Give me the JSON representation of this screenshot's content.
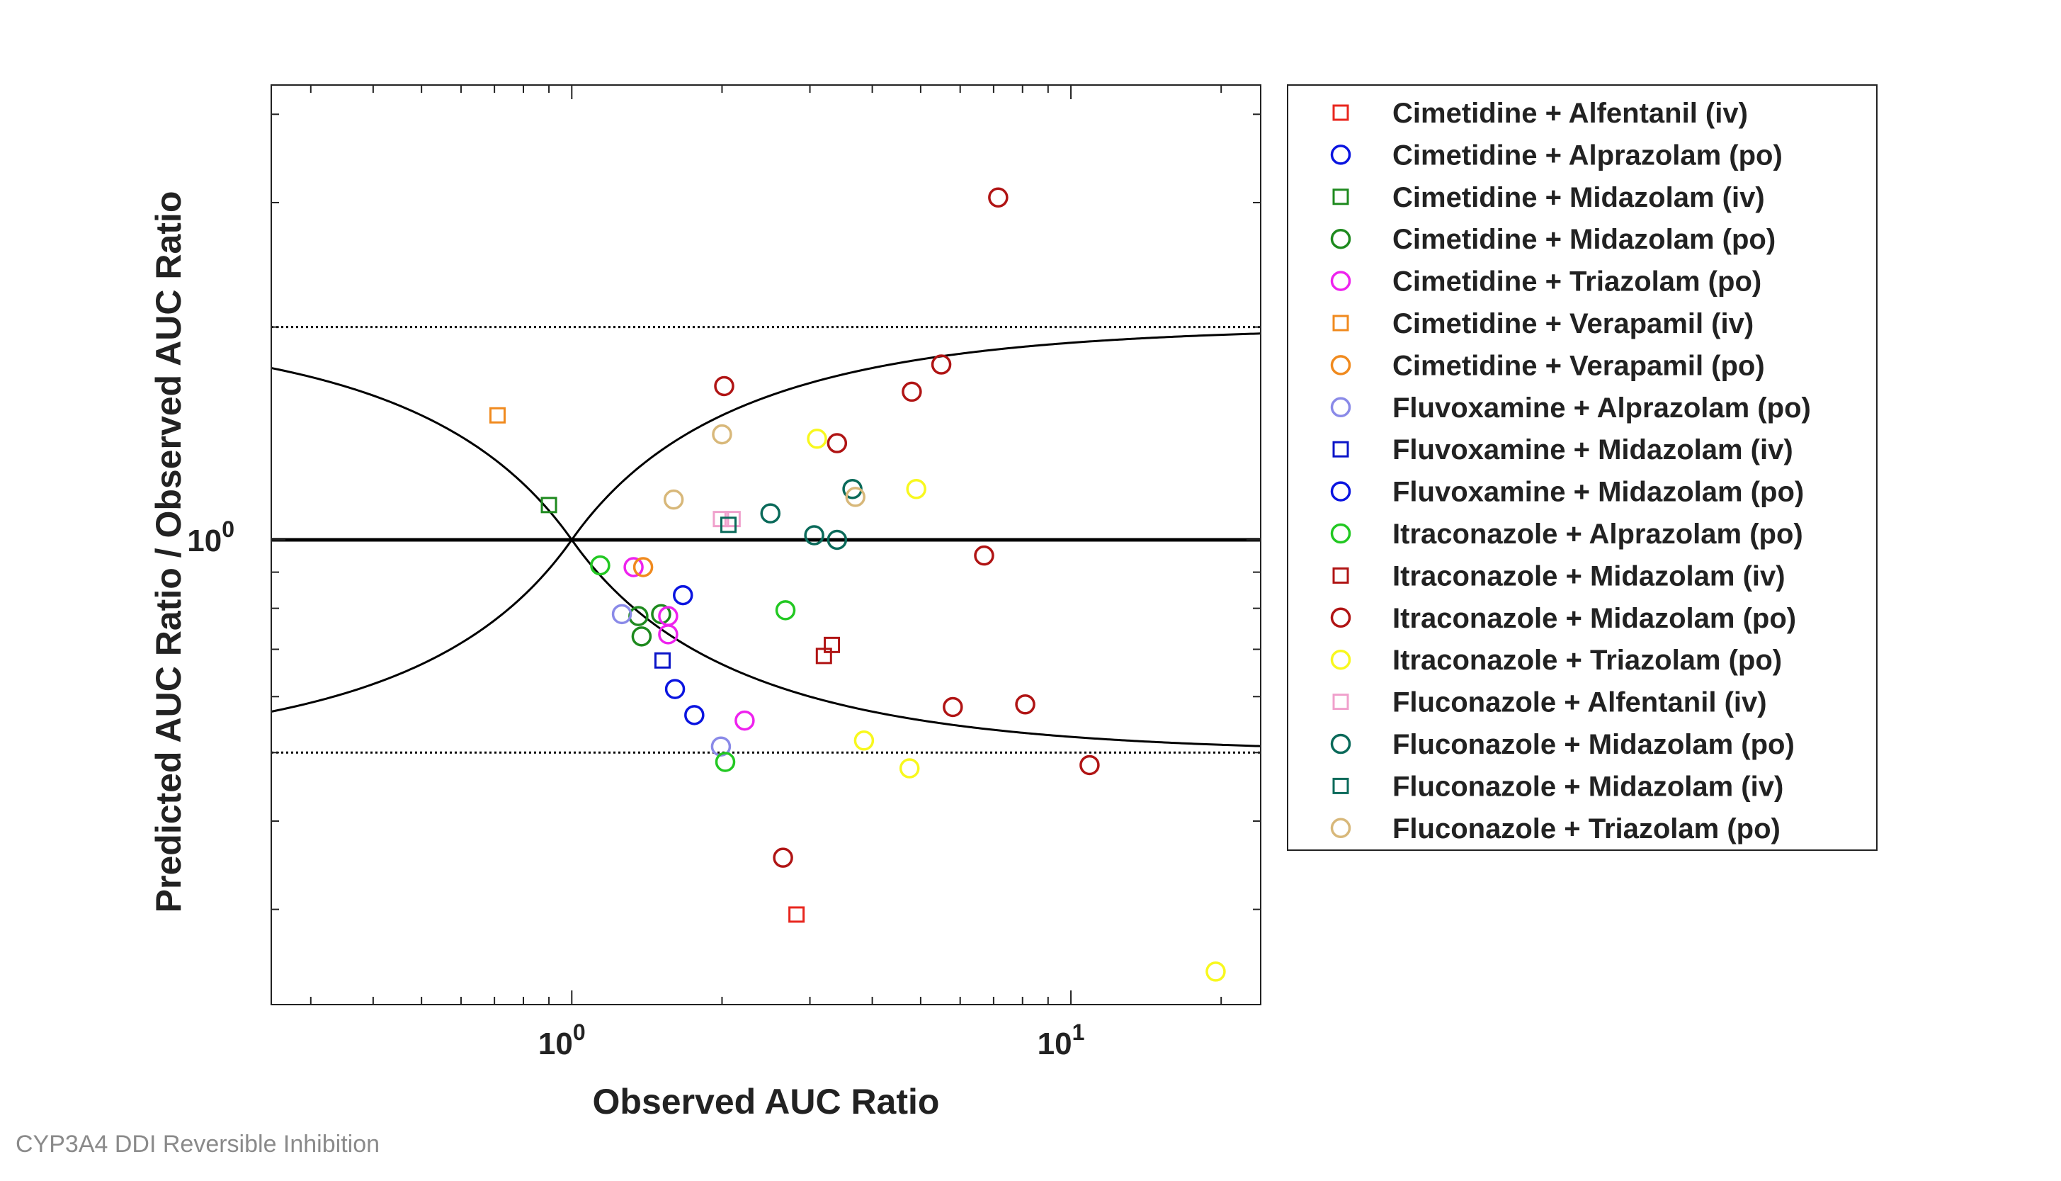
{
  "footer_caption": "CYP3A4 DDI Reversible Inhibition",
  "chart_data": {
    "type": "scatter",
    "title": "",
    "xlabel": "Observed AUC Ratio",
    "ylabel": "Predicted AUC Ratio / Observed AUC Ratio",
    "xscale": "log",
    "yscale": "log",
    "xlim": [
      0.25,
      24
    ],
    "ylim": [
      0.22,
      4.4
    ],
    "x_tick_labels": [
      {
        "value": 1,
        "base": "10",
        "exp": "0"
      },
      {
        "value": 10,
        "base": "10",
        "exp": "1"
      }
    ],
    "y_tick_labels": [
      {
        "value": 1,
        "base": "10",
        "exp": "0"
      }
    ],
    "grid": false,
    "legend_position": "outside-right",
    "reference_lines": {
      "identity_y": 1,
      "dotted_limits": [
        0.5,
        2
      ],
      "guest_limit_curves": true
    },
    "series": [
      {
        "name": "Cimetidine + Alfentanil (iv)",
        "marker": "square",
        "color": "#e8261e",
        "points": [
          [
            2.82,
            0.295
          ]
        ]
      },
      {
        "name": "Cimetidine + Alprazolam (po)",
        "marker": "circle",
        "color": "#0a14e0",
        "points": []
      },
      {
        "name": "Cimetidine + Midazolam (iv)",
        "marker": "square",
        "color": "#1e8a1e",
        "points": [
          [
            0.9,
            1.12
          ]
        ]
      },
      {
        "name": "Cimetidine + Midazolam (po)",
        "marker": "circle",
        "color": "#1e8a1e",
        "points": [
          [
            1.36,
            0.78
          ],
          [
            1.38,
            0.73
          ],
          [
            1.51,
            0.785
          ]
        ]
      },
      {
        "name": "Cimetidine + Triazolam (po)",
        "marker": "circle",
        "color": "#ee22ee",
        "points": [
          [
            1.33,
            0.915
          ],
          [
            1.56,
            0.78
          ],
          [
            1.56,
            0.735
          ],
          [
            2.22,
            0.555
          ]
        ]
      },
      {
        "name": "Cimetidine + Verapamil (iv)",
        "marker": "square",
        "color": "#f08a1e",
        "points": [
          [
            0.71,
            1.5
          ]
        ]
      },
      {
        "name": "Cimetidine + Verapamil (po)",
        "marker": "circle",
        "color": "#f08a1e",
        "points": [
          [
            1.39,
            0.915
          ]
        ]
      },
      {
        "name": "Fluvoxamine + Alprazolam (po)",
        "marker": "circle",
        "color": "#8a8ae8",
        "points": [
          [
            1.26,
            0.785
          ],
          [
            1.99,
            0.51
          ]
        ]
      },
      {
        "name": "Fluvoxamine + Midazolam (iv)",
        "marker": "square",
        "color": "#0a14c8",
        "points": [
          [
            1.52,
            0.675
          ]
        ]
      },
      {
        "name": "Fluvoxamine + Midazolam (po)",
        "marker": "circle",
        "color": "#0a14e0",
        "points": [
          [
            1.67,
            0.835
          ],
          [
            1.61,
            0.615
          ],
          [
            1.76,
            0.565
          ]
        ]
      },
      {
        "name": "Itraconazole + Alprazolam (po)",
        "marker": "circle",
        "color": "#22c822",
        "points": [
          [
            1.14,
            0.92
          ],
          [
            2.68,
            0.795
          ],
          [
            2.03,
            0.485
          ]
        ]
      },
      {
        "name": "Itraconazole + Midazolam (iv)",
        "marker": "square",
        "color": "#b01414",
        "points": [
          [
            3.2,
            0.685
          ],
          [
            3.32,
            0.71
          ]
        ]
      },
      {
        "name": "Itraconazole + Midazolam (po)",
        "marker": "circle",
        "color": "#b01414",
        "points": [
          [
            7.15,
            3.05
          ],
          [
            2.02,
            1.65
          ],
          [
            5.5,
            1.77
          ],
          [
            4.8,
            1.62
          ],
          [
            3.4,
            1.37
          ],
          [
            6.7,
            0.95
          ],
          [
            5.8,
            0.58
          ],
          [
            8.1,
            0.585
          ],
          [
            10.9,
            0.48
          ],
          [
            2.65,
            0.355
          ]
        ]
      },
      {
        "name": "Itraconazole + Triazolam (po)",
        "marker": "circle",
        "color": "#f8f81e",
        "points": [
          [
            3.1,
            1.39
          ],
          [
            4.9,
            1.18
          ],
          [
            3.85,
            0.52
          ],
          [
            4.75,
            0.475
          ],
          [
            19.5,
            0.245
          ]
        ]
      },
      {
        "name": "Fluconazole + Alfentanil (iv)",
        "marker": "square",
        "color": "#f0a0cc",
        "points": [
          [
            1.99,
            1.07
          ],
          [
            2.1,
            1.07
          ]
        ]
      },
      {
        "name": "Fluconazole + Midazolam (po)",
        "marker": "circle",
        "color": "#0a6a5a",
        "points": [
          [
            2.5,
            1.09
          ],
          [
            3.65,
            1.18
          ],
          [
            3.06,
            1.015
          ],
          [
            3.4,
            1.0
          ]
        ]
      },
      {
        "name": "Fluconazole + Midazolam (iv)",
        "marker": "square",
        "color": "#0a6a5a",
        "points": [
          [
            2.06,
            1.05
          ]
        ]
      },
      {
        "name": "Fluconazole + Triazolam (po)",
        "marker": "circle",
        "color": "#d8b87a",
        "points": [
          [
            2.0,
            1.41
          ],
          [
            1.6,
            1.14
          ],
          [
            3.7,
            1.15
          ]
        ]
      }
    ]
  }
}
